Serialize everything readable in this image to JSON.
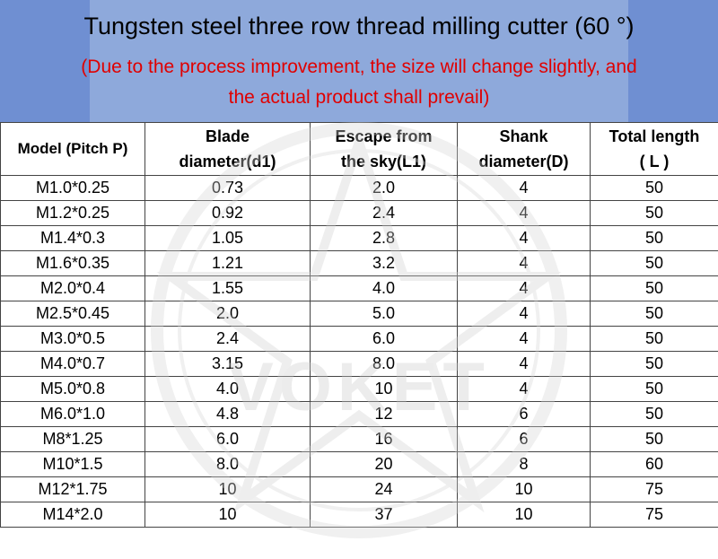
{
  "header": {
    "title": "Tungsten steel three row thread milling cutter (60 °)",
    "note_line1": "(Due to the process improvement, the size will change slightly, and",
    "note_line2": "the actual product shall prevail)"
  },
  "watermark": {
    "brand": "VOKET"
  },
  "table": {
    "headers": [
      [
        "Model (Pitch P)"
      ],
      [
        "Blade",
        "diameter(d1)"
      ],
      [
        "Escape from",
        "the sky(L1)"
      ],
      [
        "Shank",
        "diameter(D)"
      ],
      [
        "Total length",
        "( L )"
      ]
    ],
    "rows": [
      [
        "M1.0*0.25",
        "0.73",
        "2.0",
        "4",
        "50"
      ],
      [
        "M1.2*0.25",
        "0.92",
        "2.4",
        "4",
        "50"
      ],
      [
        "M1.4*0.3",
        "1.05",
        "2.8",
        "4",
        "50"
      ],
      [
        "M1.6*0.35",
        "1.21",
        "3.2",
        "4",
        "50"
      ],
      [
        "M2.0*0.4",
        "1.55",
        "4.0",
        "4",
        "50"
      ],
      [
        "M2.5*0.45",
        "2.0",
        "5.0",
        "4",
        "50"
      ],
      [
        "M3.0*0.5",
        "2.4",
        "6.0",
        "4",
        "50"
      ],
      [
        "M4.0*0.7",
        "3.15",
        "8.0",
        "4",
        "50"
      ],
      [
        "M5.0*0.8",
        "4.0",
        "10",
        "4",
        "50"
      ],
      [
        "M6.0*1.0",
        "4.8",
        "12",
        "6",
        "50"
      ],
      [
        "M8*1.25",
        "6.0",
        "16",
        "6",
        "50"
      ],
      [
        "M10*1.5",
        "8.0",
        "20",
        "8",
        "60"
      ],
      [
        "M12*1.75",
        "10",
        "24",
        "10",
        "75"
      ],
      [
        "M14*2.0",
        "10",
        "37",
        "10",
        "75"
      ]
    ]
  }
}
